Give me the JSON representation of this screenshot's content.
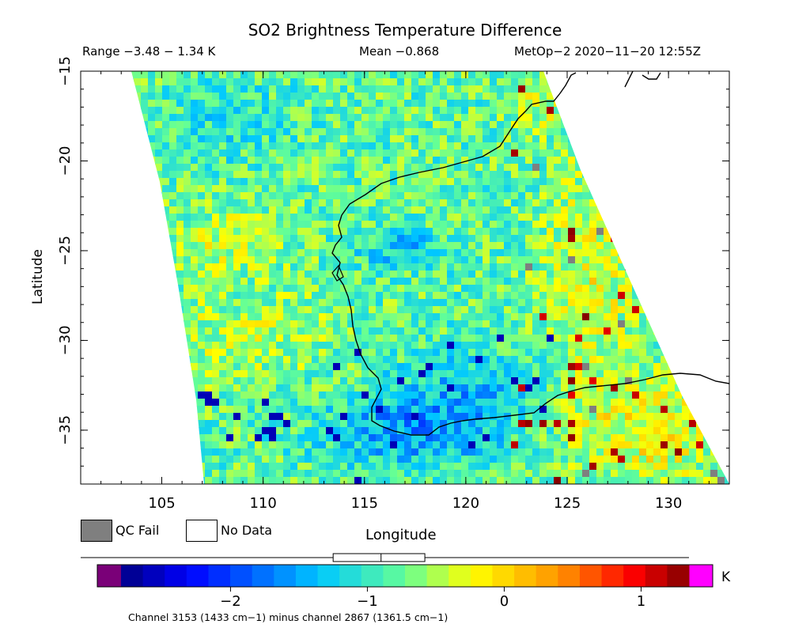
{
  "header": {
    "title": "SO2 Brightness Temperature Difference",
    "range_text": "Range −3.48 − 1.34 K",
    "mean_text": "Mean −0.868",
    "satellite_text": "MetOp−2 2020−11−20 12:55Z"
  },
  "axes": {
    "x_label": "Longitude",
    "y_label": "Latitude",
    "x_ticks": [
      "105",
      "110",
      "115",
      "120",
      "125",
      "130"
    ],
    "y_ticks": [
      "−15",
      "−20",
      "−25",
      "−30",
      "−35"
    ],
    "lon_range": [
      101,
      133
    ],
    "lat_range": [
      -38,
      -15
    ]
  },
  "legend": {
    "qc_fail_label": "QC Fail",
    "no_data_label": "No Data",
    "qc_fail_color": "#7f7f7f",
    "no_data_color": "#ffffff"
  },
  "colorbar": {
    "unit": "K",
    "tick_labels": [
      "−2",
      "−1",
      "0",
      "1"
    ],
    "tick_values": [
      -2,
      -1,
      0,
      1
    ],
    "min": -2.8,
    "max": 1.35,
    "under_color": "#7a0078",
    "over_color": "#ff00ff",
    "box_stats": {
      "min": -2.8,
      "q1": -1.25,
      "median": -0.9,
      "q3": -0.58,
      "max": 1.35
    }
  },
  "footnote": "Channel 3153 (1433 cm−1) minus channel 2867 (1361.5 cm−1)"
}
